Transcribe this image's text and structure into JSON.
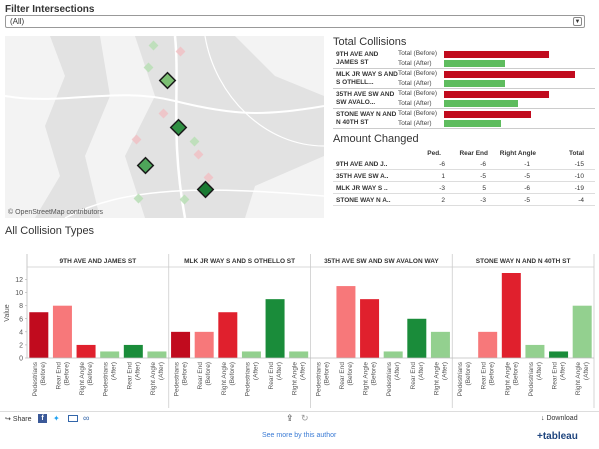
{
  "filter": {
    "title": "Filter Intersections",
    "value": "(All)"
  },
  "map": {
    "credit": "© OpenStreetMap contributors"
  },
  "total_collisions": {
    "title": "Total Collisions",
    "axis_max": 13,
    "rows": [
      {
        "street": "9TH AVE AND JAMES ST",
        "before_label": "Total (Before)",
        "after_label": "Total (After)",
        "before": 12,
        "after": 7
      },
      {
        "street": "MLK JR WAY S AND S OTHELL...",
        "before_label": "Total (Before)",
        "after_label": "Total (After)",
        "before": 15,
        "after": 7
      },
      {
        "street": "35TH AVE SW AND SW AVALO...",
        "before_label": "Total (Before)",
        "after_label": "Total (After)",
        "before": 12,
        "after": 8.5
      },
      {
        "street": "STONE WAY N AND N 40TH ST",
        "before_label": "Total (Before)",
        "after_label": "Total (After)",
        "before": 10,
        "after": 6.5
      }
    ]
  },
  "amount_changed": {
    "title": "Amount Changed",
    "headers": [
      "Ped.",
      "Rear End",
      "Right Angle",
      "Total"
    ],
    "rows": [
      {
        "street": "9TH AVE AND J..",
        "values": [
          "-6",
          "-6",
          "-1",
          "-15"
        ]
      },
      {
        "street": "35TH AVE SW A..",
        "values": [
          "1",
          "-5",
          "-5",
          "-10"
        ]
      },
      {
        "street": "MLK JR WAY S ..",
        "values": [
          "-3",
          "5",
          "-6",
          "-19"
        ]
      },
      {
        "street": "STONE WAY N A..",
        "values": [
          "2",
          "-3",
          "-5",
          "-4"
        ]
      }
    ]
  },
  "colors": {
    "before_dark": "#c10b1e",
    "before_light": "#f7787a",
    "before_mid": "#e0202d",
    "after_dark": "#1a8c3a",
    "after_light": "#93d08f",
    "total_before": "#c10b1e",
    "total_after": "#5ebc5e"
  },
  "chart_data": {
    "type": "bar",
    "title": "All Collision Types",
    "ylabel": "Value",
    "ylim": [
      0,
      13
    ],
    "yticks": [
      0,
      2,
      4,
      6,
      8,
      10,
      12
    ],
    "categories": [
      "Pedestrians (Before)",
      "Rear End (Before)",
      "Right Angle (Before)",
      "Pedestrians (After)",
      "Rear End (After)",
      "Right Angle (After)"
    ],
    "category_lines": [
      [
        "Pedestrians",
        "(Before)"
      ],
      [
        "Rear End",
        "(Before)"
      ],
      [
        "Right Angle",
        "(Before)"
      ],
      [
        "Pedestrians",
        "(After)"
      ],
      [
        "Rear End",
        "(After)"
      ],
      [
        "Right Angle",
        "(After)"
      ]
    ],
    "panels": [
      {
        "name": "9TH AVE AND JAMES ST",
        "values": [
          7,
          8,
          2,
          1,
          2,
          1
        ],
        "colors": [
          "#c10b1e",
          "#f7787a",
          "#e0202d",
          "#93d08f",
          "#1a8c3a",
          "#93d08f"
        ]
      },
      {
        "name": "MLK JR WAY S AND S OTHELLO ST",
        "values": [
          4,
          4,
          7,
          1,
          9,
          1
        ],
        "colors": [
          "#c10b1e",
          "#f7787a",
          "#e0202d",
          "#93d08f",
          "#1a8c3a",
          "#93d08f"
        ]
      },
      {
        "name": "35TH AVE SW AND SW AVALON WAY",
        "values": [
          0,
          11,
          9,
          1,
          6,
          4
        ],
        "colors": [
          "#c10b1e",
          "#f7787a",
          "#e0202d",
          "#93d08f",
          "#1a8c3a",
          "#93d08f"
        ]
      },
      {
        "name": "STONE WAY N AND N 40TH ST",
        "values": [
          0,
          4,
          13,
          2,
          1,
          8
        ],
        "colors": [
          "#c10b1e",
          "#f7787a",
          "#e0202d",
          "#93d08f",
          "#1a8c3a",
          "#93d08f"
        ]
      }
    ]
  },
  "footer": {
    "share": "Share",
    "download": "Download",
    "author_link": "See more by this author",
    "brand": "+tableau"
  }
}
